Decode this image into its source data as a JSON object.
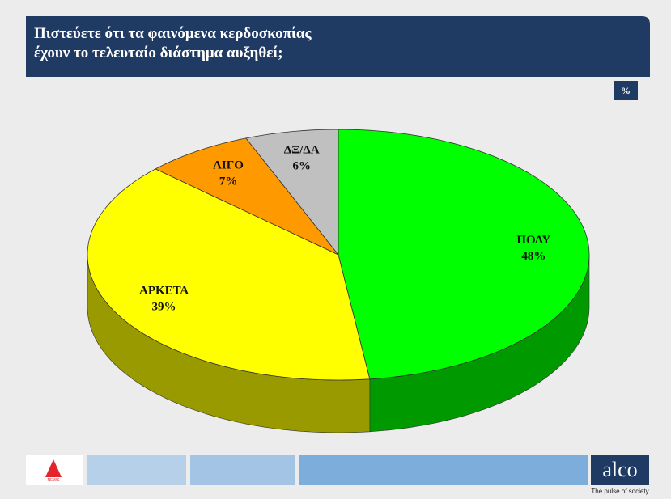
{
  "chart_data": {
    "type": "pie3d",
    "title": "Πιστεύετε ότι τα φαινόμενα κερδοσκοπίας\nέχουν το τελευταίο διάστημα αυξηθεί;",
    "unit": "%",
    "categories": [
      "ΠΟΛΥ",
      "ΑΡΚΕΤΑ",
      "ΛΙΓΟ",
      "ΔΞ/ΔΑ"
    ],
    "values": [
      48,
      39,
      7,
      6
    ],
    "value_labels": [
      "48%",
      "39%",
      "7%",
      "6%"
    ],
    "colors": [
      "#00ff00",
      "#ffff00",
      "#ff9900",
      "#c0c0c0"
    ]
  },
  "branding": {
    "channel_badge": "NEWS",
    "logo": "alco",
    "tagline": "The pulse of society"
  }
}
